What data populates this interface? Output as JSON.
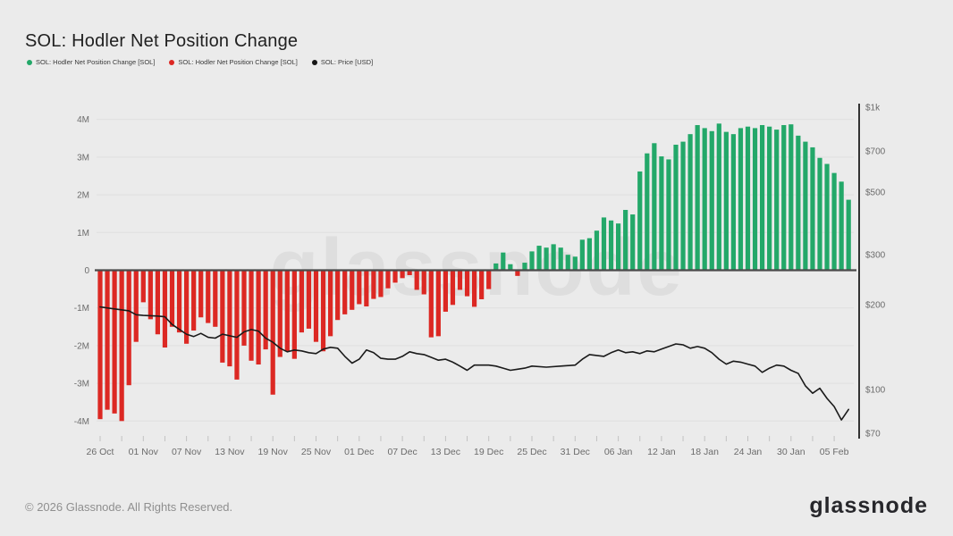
{
  "header": {
    "title": "SOL: Hodler Net Position Change"
  },
  "legend": {
    "items": [
      {
        "label": "SOL: Hodler Net Position Change [SOL]",
        "color": "#23a869"
      },
      {
        "label": "SOL: Hodler Net Position Change [SOL]",
        "color": "#dc2823"
      },
      {
        "label": "SOL: Price [USD]",
        "color": "#161616"
      }
    ]
  },
  "watermark": "glassnode",
  "footer": {
    "copyright": "© 2026 Glassnode. All Rights Reserved.",
    "logo": "glassnode"
  },
  "colors": {
    "background": "#ebebeb",
    "bar_positive": "#23a869",
    "bar_negative": "#dc2823",
    "price_line": "#1a1a1a",
    "zero_line": "#4a4a4a",
    "right_axis_line": "#333333",
    "grid_line": "#dfdfdf",
    "axis_text": "#6b6b6b",
    "tick_mark": "#c2c2c2",
    "watermark": "#dedede",
    "footer_text": "#8f8f8f",
    "logo_text": "#27272b",
    "title_text": "#212121"
  },
  "chart_data": {
    "type": "bar",
    "title": "SOL: Hodler Net Position Change",
    "grid": "horizontal-faint",
    "x_start_label": "26 Oct",
    "x_tick_labels": [
      "26 Oct",
      "01 Nov",
      "07 Nov",
      "13 Nov",
      "19 Nov",
      "25 Nov",
      "01 Dec",
      "07 Dec",
      "13 Dec",
      "19 Dec",
      "25 Dec",
      "31 Dec",
      "06 Jan",
      "12 Jan",
      "18 Jan",
      "24 Jan",
      "30 Jan",
      "05 Feb"
    ],
    "x_tick_day_index": [
      0,
      6,
      12,
      18,
      24,
      30,
      36,
      42,
      48,
      54,
      60,
      66,
      72,
      78,
      84,
      90,
      96,
      102
    ],
    "left_axis": {
      "unit": "SOL (millions)",
      "tick_labels": [
        "4M",
        "3M",
        "2M",
        "1M",
        "0",
        "-1M",
        "-2M",
        "-3M",
        "-4M"
      ],
      "tick_values": [
        4,
        3,
        2,
        1,
        0,
        -1,
        -2,
        -3,
        -4
      ],
      "range": [
        -4.6,
        4.6
      ]
    },
    "right_axis": {
      "unit": "USD",
      "scale": "log",
      "tick_labels": [
        "$1k",
        "$700",
        "$500",
        "$300",
        "$200",
        "$100",
        "$70"
      ],
      "tick_values": [
        1000,
        700,
        500,
        300,
        200,
        100,
        70
      ],
      "range": [
        68,
        1050
      ]
    },
    "legend_position": "top-left",
    "series": [
      {
        "name": "SOL: Hodler Net Position Change [SOL]",
        "type": "bar",
        "unit": "M SOL",
        "color_positive": "#23a869",
        "color_negative": "#dc2823",
        "values": [
          -3.95,
          -3.7,
          -3.8,
          -4.0,
          -3.05,
          -1.9,
          -0.85,
          -1.3,
          -1.7,
          -2.05,
          -1.5,
          -1.65,
          -1.95,
          -1.6,
          -1.25,
          -1.4,
          -1.5,
          -2.45,
          -2.55,
          -2.9,
          -2.0,
          -2.4,
          -2.5,
          -2.1,
          -3.3,
          -2.3,
          -2.15,
          -2.35,
          -1.65,
          -1.55,
          -1.9,
          -2.15,
          -1.75,
          -1.32,
          -1.17,
          -1.05,
          -0.9,
          -0.96,
          -0.76,
          -0.71,
          -0.48,
          -0.33,
          -0.21,
          -0.13,
          -0.52,
          -0.64,
          -1.78,
          -1.75,
          -1.1,
          -0.92,
          -0.52,
          -0.69,
          -0.97,
          -0.77,
          -0.5,
          0.18,
          0.47,
          0.16,
          -0.15,
          0.2,
          0.5,
          0.65,
          0.6,
          0.69,
          0.6,
          0.41,
          0.36,
          0.81,
          0.85,
          1.05,
          1.4,
          1.32,
          1.24,
          1.6,
          1.48,
          2.62,
          3.1,
          3.37,
          3.02,
          2.94,
          3.33,
          3.41,
          3.61,
          3.85,
          3.77,
          3.69,
          3.89,
          3.67,
          3.61,
          3.77,
          3.81,
          3.77,
          3.85,
          3.81,
          3.73,
          3.85,
          3.87,
          3.57,
          3.41,
          3.26,
          2.98,
          2.82,
          2.58,
          2.35,
          1.87
        ]
      },
      {
        "name": "SOL: Price [USD]",
        "type": "line",
        "unit": "USD",
        "color": "#1a1a1a",
        "points": [
          [
            0,
            196
          ],
          [
            2,
            193
          ],
          [
            4,
            190
          ],
          [
            5,
            184
          ],
          [
            6,
            183
          ],
          [
            8,
            182
          ],
          [
            9,
            181
          ],
          [
            10,
            170
          ],
          [
            12,
            157
          ],
          [
            13,
            154
          ],
          [
            14,
            158
          ],
          [
            15,
            153
          ],
          [
            16,
            152
          ],
          [
            17,
            157
          ],
          [
            18,
            155
          ],
          [
            19,
            153
          ],
          [
            20,
            160
          ],
          [
            21,
            163
          ],
          [
            22,
            161
          ],
          [
            23,
            152
          ],
          [
            24,
            147
          ],
          [
            25,
            140
          ],
          [
            26,
            136
          ],
          [
            27,
            138
          ],
          [
            28,
            137
          ],
          [
            29,
            135
          ],
          [
            30,
            134
          ],
          [
            31,
            139
          ],
          [
            32,
            141
          ],
          [
            33,
            140
          ],
          [
            34,
            131
          ],
          [
            35,
            124
          ],
          [
            36,
            128
          ],
          [
            37,
            138
          ],
          [
            38,
            135
          ],
          [
            39,
            129
          ],
          [
            40,
            128
          ],
          [
            41,
            128
          ],
          [
            42,
            131
          ],
          [
            43,
            136
          ],
          [
            44,
            134
          ],
          [
            45,
            133
          ],
          [
            46,
            130
          ],
          [
            47,
            127
          ],
          [
            48,
            128
          ],
          [
            49,
            125
          ],
          [
            50,
            121
          ],
          [
            51,
            117
          ],
          [
            52,
            122
          ],
          [
            53,
            122
          ],
          [
            54,
            122
          ],
          [
            55,
            121
          ],
          [
            56,
            119
          ],
          [
            57,
            117
          ],
          [
            58,
            118
          ],
          [
            59,
            119
          ],
          [
            60,
            121
          ],
          [
            62,
            120
          ],
          [
            64,
            121
          ],
          [
            66,
            122
          ],
          [
            67,
            128
          ],
          [
            68,
            133
          ],
          [
            70,
            131
          ],
          [
            71,
            135
          ],
          [
            72,
            138
          ],
          [
            73,
            135
          ],
          [
            74,
            136
          ],
          [
            75,
            134
          ],
          [
            76,
            137
          ],
          [
            77,
            136
          ],
          [
            78,
            139
          ],
          [
            79,
            142
          ],
          [
            80,
            145
          ],
          [
            81,
            144
          ],
          [
            82,
            140
          ],
          [
            83,
            142
          ],
          [
            84,
            140
          ],
          [
            85,
            135
          ],
          [
            86,
            128
          ],
          [
            87,
            123
          ],
          [
            88,
            126
          ],
          [
            89,
            125
          ],
          [
            90,
            123
          ],
          [
            91,
            121
          ],
          [
            92,
            115
          ],
          [
            93,
            119
          ],
          [
            94,
            122
          ],
          [
            95,
            121
          ],
          [
            96,
            117
          ],
          [
            97,
            114
          ],
          [
            98,
            103
          ],
          [
            99,
            97
          ],
          [
            100,
            101
          ],
          [
            101,
            93
          ],
          [
            102,
            87
          ],
          [
            103,
            78
          ],
          [
            104,
            85
          ]
        ]
      }
    ]
  }
}
